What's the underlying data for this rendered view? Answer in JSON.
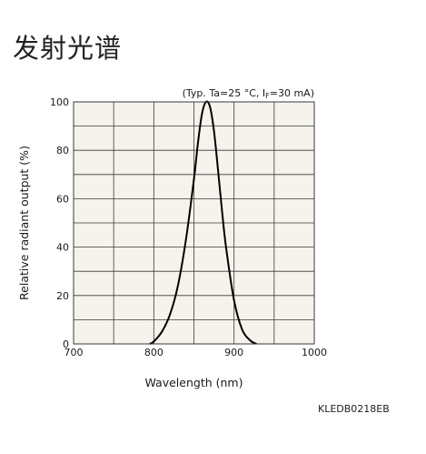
{
  "page": {
    "heading": "发射光谱",
    "figure_code": "KLEDB0218EB"
  },
  "colors": {
    "plot_background": "#f5f3ec",
    "grid": "#3a3a3a",
    "curve": "#000000"
  },
  "chart_data": {
    "type": "line",
    "title": "",
    "annotation": {
      "before": "(Typ. Ta=25 °C, I",
      "subscript": "F",
      "after": "=30 mA)"
    },
    "xlabel": "Wavelength (nm)",
    "ylabel": "Relative radiant output (%)",
    "xlim": [
      700,
      1000
    ],
    "ylim": [
      0,
      100
    ],
    "x_ticks": [
      700,
      800,
      900,
      1000
    ],
    "y_ticks": [
      0,
      20,
      40,
      60,
      80,
      100
    ],
    "x_tick_labels": [
      "700",
      "800",
      "900",
      "1000"
    ],
    "y_tick_labels": [
      "0",
      "20",
      "40",
      "60",
      "80",
      "100"
    ],
    "grid": true,
    "grid_minor_x_step": 50,
    "grid_minor_y_step": 10,
    "series": [
      {
        "x": [
          795,
          800,
          810,
          820,
          830,
          840,
          850,
          855,
          860,
          865,
          870,
          875,
          880,
          885,
          890,
          900,
          910,
          920,
          928
        ],
        "y": [
          0,
          1,
          5,
          12,
          24,
          43,
          68,
          83,
          95,
          100,
          98,
          88,
          72,
          55,
          40,
          18,
          6,
          1.5,
          0
        ]
      }
    ]
  }
}
